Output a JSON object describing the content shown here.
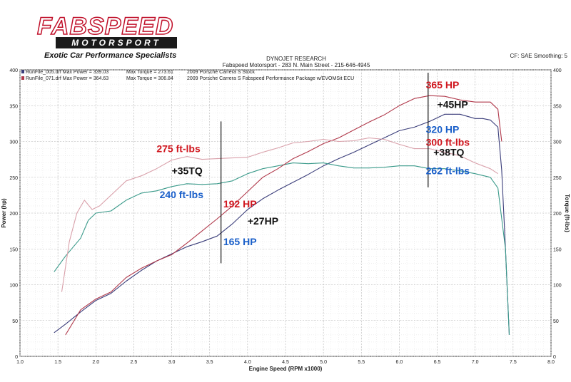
{
  "logo": {
    "brand": "FABSPEED",
    "sub": "MOTORSPORT",
    "tagline": "Exotic Car Performance Specialists"
  },
  "header": {
    "line1": "DYNOJET RESEARCH",
    "line2": "Fabspeed Motorsport - 283 N. Main Street - 215-646-4945",
    "right": "CF: SAE  Smoothing: 5"
  },
  "legend": [
    {
      "file": "RunFile_005.drf Max Power = 339.03",
      "torque": "Max Torque = 273.61",
      "desc": "2009 Porsche Carrera S Stock",
      "color": "#3a3d7a"
    },
    {
      "file": "RunFile_071.drf Max Power = 364.63",
      "torque": "Max Torque = 306.84",
      "desc": "2009 Porsche Carrera S Fabspeed Performance Package w/EVOMSit ECU",
      "color": "#b0384a"
    }
  ],
  "chart_data": {
    "type": "line",
    "xlabel": "Engine Speed (RPM x1000)",
    "ylabel": "Power (hp)",
    "y2label": "Torque (ft-lbs)",
    "xlim": [
      1.0,
      8.0
    ],
    "ylim": [
      0,
      400
    ],
    "xticks": [
      "1.0",
      "1.5",
      "2.0",
      "2.5",
      "3.0",
      "3.5",
      "4.0",
      "4.5",
      "5.0",
      "5.5",
      "6.0",
      "6.5",
      "7.0",
      "7.5",
      "8.0"
    ],
    "yticks": [
      "0",
      "50",
      "100",
      "150",
      "200",
      "250",
      "300",
      "350",
      "400"
    ],
    "y2ticks": [
      "0",
      "50",
      "100",
      "150",
      "200",
      "250",
      "300",
      "350",
      "400"
    ],
    "series": [
      {
        "name": "Stock Power",
        "color": "#3a3d7a",
        "x": [
          1.45,
          1.6,
          1.8,
          2.0,
          2.2,
          2.4,
          2.6,
          2.8,
          3.0,
          3.2,
          3.4,
          3.6,
          3.8,
          4.0,
          4.2,
          4.4,
          4.6,
          4.8,
          5.0,
          5.2,
          5.4,
          5.6,
          5.8,
          6.0,
          6.2,
          6.4,
          6.6,
          6.8,
          7.0,
          7.1,
          7.2,
          7.3,
          7.35,
          7.4,
          7.45
        ],
        "y": [
          33,
          45,
          62,
          78,
          88,
          105,
          120,
          133,
          143,
          153,
          160,
          168,
          185,
          205,
          220,
          232,
          243,
          254,
          266,
          276,
          285,
          295,
          305,
          315,
          320,
          328,
          338,
          338,
          332,
          332,
          330,
          320,
          260,
          150,
          30
        ]
      },
      {
        "name": "Stock Torque",
        "color": "#3a9a8a",
        "x": [
          1.45,
          1.6,
          1.8,
          1.9,
          2.0,
          2.2,
          2.4,
          2.6,
          2.8,
          3.0,
          3.2,
          3.4,
          3.6,
          3.8,
          4.0,
          4.2,
          4.4,
          4.6,
          4.8,
          5.0,
          5.2,
          5.4,
          5.6,
          5.8,
          6.0,
          6.2,
          6.4,
          6.6,
          6.8,
          7.0,
          7.2,
          7.3,
          7.4,
          7.45
        ],
        "y": [
          118,
          140,
          165,
          190,
          200,
          203,
          218,
          228,
          231,
          237,
          241,
          240,
          241,
          245,
          255,
          262,
          266,
          270,
          269,
          270,
          266,
          263,
          263,
          264,
          266,
          266,
          262,
          262,
          259,
          255,
          250,
          235,
          150,
          30
        ]
      },
      {
        "name": "Fabspeed Power",
        "color": "#b0384a",
        "x": [
          1.6,
          1.8,
          2.0,
          2.2,
          2.4,
          2.6,
          2.8,
          3.0,
          3.2,
          3.4,
          3.6,
          3.8,
          4.0,
          4.2,
          4.4,
          4.6,
          4.8,
          5.0,
          5.2,
          5.4,
          5.6,
          5.8,
          6.0,
          6.2,
          6.4,
          6.6,
          6.8,
          7.0,
          7.1,
          7.2,
          7.3,
          7.35
        ],
        "y": [
          30,
          65,
          80,
          90,
          110,
          123,
          133,
          142,
          158,
          175,
          192,
          210,
          230,
          250,
          262,
          276,
          286,
          297,
          305,
          316,
          327,
          337,
          350,
          360,
          364,
          363,
          358,
          355,
          355,
          355,
          345,
          300
        ]
      },
      {
        "name": "Fabspeed Torque",
        "color": "#d9a0aa",
        "x": [
          1.55,
          1.65,
          1.75,
          1.85,
          1.95,
          2.05,
          2.2,
          2.4,
          2.6,
          2.8,
          3.0,
          3.2,
          3.4,
          3.6,
          3.8,
          4.0,
          4.2,
          4.4,
          4.6,
          4.8,
          5.0,
          5.2,
          5.4,
          5.6,
          5.8,
          6.0,
          6.2,
          6.4,
          6.6,
          6.8,
          7.0,
          7.2,
          7.3
        ],
        "y": [
          90,
          160,
          200,
          218,
          205,
          210,
          225,
          245,
          252,
          262,
          274,
          279,
          275,
          276,
          277,
          278,
          285,
          291,
          298,
          300,
          303,
          300,
          301,
          305,
          303,
          296,
          290,
          290,
          285,
          280,
          270,
          262,
          255
        ]
      }
    ],
    "annotations": [
      {
        "text": "365 HP",
        "x": 6.35,
        "y": 374,
        "color": "#d0161e"
      },
      {
        "text": "+45HP",
        "x": 6.5,
        "y": 347,
        "color": "#111111"
      },
      {
        "text": "320 HP",
        "x": 6.35,
        "y": 312,
        "color": "#1a5fc9"
      },
      {
        "text": "300 ft-lbs",
        "x": 6.35,
        "y": 294,
        "color": "#d0161e"
      },
      {
        "text": "+38TQ",
        "x": 6.45,
        "y": 280,
        "color": "#111111"
      },
      {
        "text": "262 ft-lbs",
        "x": 6.35,
        "y": 254,
        "color": "#1a5fc9"
      },
      {
        "text": "275 ft-lbs",
        "x": 2.8,
        "y": 285,
        "color": "#d0161e"
      },
      {
        "text": "+35TQ",
        "x": 3.0,
        "y": 254,
        "color": "#111111"
      },
      {
        "text": "240 ft-lbs",
        "x": 2.84,
        "y": 221,
        "color": "#1a5fc9"
      },
      {
        "text": "192 HP",
        "x": 3.68,
        "y": 208,
        "color": "#d0161e"
      },
      {
        "text": "+27HP",
        "x": 4.0,
        "y": 184,
        "color": "#111111"
      },
      {
        "text": "165 HP",
        "x": 3.68,
        "y": 155,
        "color": "#1a5fc9"
      }
    ],
    "markers": [
      {
        "x": 3.65,
        "y1": 130,
        "y2": 328
      },
      {
        "x": 6.38,
        "y1": 236,
        "y2": 396
      }
    ]
  }
}
